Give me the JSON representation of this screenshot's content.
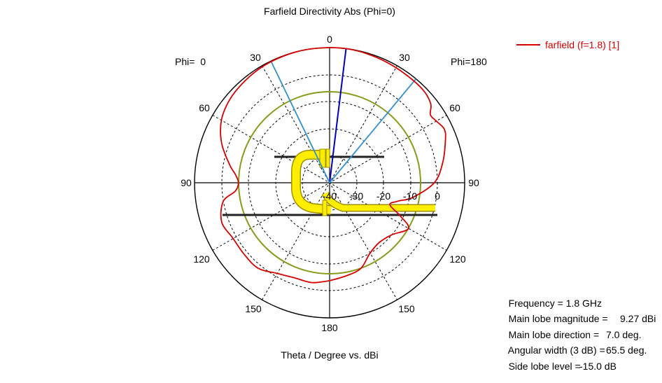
{
  "chart_data": {
    "type": "polar-line",
    "title": "Farfield Directivity Abs (Phi=0)",
    "xlabel": "Theta / Degree vs. dBi",
    "left_half_label": "Phi=  0",
    "right_half_label": "Phi=180",
    "radial_range_dbi": [
      -40,
      0
    ],
    "radial_ticks": [
      "-40",
      "-30",
      "-20",
      "-10",
      "0"
    ],
    "angle_ticks_left": [
      "0",
      "30",
      "60",
      "90",
      "120",
      "150",
      "180"
    ],
    "angle_ticks_right": [
      "30",
      "60",
      "90",
      "120",
      "150"
    ],
    "series": [
      {
        "name": "farfield (f=1.8) [1]",
        "color": "#d80000",
        "points": [
          {
            "theta": -180,
            "r": -11
          },
          {
            "theta": -170,
            "r": -10
          },
          {
            "theta": -160,
            "r": -10
          },
          {
            "theta": -150,
            "r": -9
          },
          {
            "theta": -140,
            "r": -7
          },
          {
            "theta": -130,
            "r": -7
          },
          {
            "theta": -120,
            "r": -7
          },
          {
            "theta": -110,
            "r": -6
          },
          {
            "theta": -100,
            "r": -8
          },
          {
            "theta": -95,
            "r": -12
          },
          {
            "theta": -90,
            "r": -13
          },
          {
            "theta": -85,
            "r": -12
          },
          {
            "theta": -80,
            "r": -10
          },
          {
            "theta": -70,
            "r": -6
          },
          {
            "theta": -60,
            "r": -3
          },
          {
            "theta": -50,
            "r": -1.5
          },
          {
            "theta": -40,
            "r": -0.8
          },
          {
            "theta": -30,
            "r": -0.3
          },
          {
            "theta": -20,
            "r": -0.1
          },
          {
            "theta": -10,
            "r": 0
          },
          {
            "theta": 0,
            "r": 0
          },
          {
            "theta": 7,
            "r": 0
          },
          {
            "theta": 15,
            "r": -0.2
          },
          {
            "theta": 25,
            "r": -0.5
          },
          {
            "theta": 35,
            "r": -0.8
          },
          {
            "theta": 45,
            "r": -1
          },
          {
            "theta": 52,
            "r": -2
          },
          {
            "theta": 56,
            "r": -4
          },
          {
            "theta": 60,
            "r": -3.5
          },
          {
            "theta": 65,
            "r": -2.5
          },
          {
            "theta": 70,
            "r": -3.5
          },
          {
            "theta": 80,
            "r": -6
          },
          {
            "theta": 90,
            "r": -9
          },
          {
            "theta": 100,
            "r": -15
          },
          {
            "theta": 105,
            "r": -19
          },
          {
            "theta": 110,
            "r": -21
          },
          {
            "theta": 115,
            "r": -17
          },
          {
            "theta": 120,
            "r": -13
          },
          {
            "theta": 130,
            "r": -16
          },
          {
            "theta": 140,
            "r": -17
          },
          {
            "theta": 150,
            "r": -16
          },
          {
            "theta": 160,
            "r": -13
          },
          {
            "theta": 170,
            "r": -12
          },
          {
            "theta": 180,
            "r": -11
          }
        ]
      }
    ],
    "reference_circle_dbi": -9.27,
    "markers": [
      {
        "kind": "main-lobe-direction",
        "theta": 7,
        "color": "#0000c0"
      },
      {
        "kind": "3db-beamwidth-edge",
        "theta": -25.75,
        "color": "#3090d0"
      },
      {
        "kind": "3db-beamwidth-edge",
        "theta": 39.75,
        "color": "#3090d0"
      }
    ],
    "grid": true,
    "legend_position": "top-right"
  },
  "info": {
    "frequency_label": "Frequency = 1.8 GHz",
    "magnitude_label": "Main lobe magnitude =",
    "magnitude_value": "9.27 dBi",
    "direction_label": "Main lobe direction =",
    "direction_value": "7.0 deg.",
    "width_label": "Angular width (3 dB) =",
    "width_value": "65.5 deg.",
    "sidelobe_label": "Side lobe level =",
    "sidelobe_value": "-15.0 dB"
  },
  "colors": {
    "curve": "#d80000",
    "ref_circle": "#8a9a1a",
    "main_lobe": "#0000c0",
    "beamwidth": "#3090d0",
    "antenna": "#ffee00",
    "antenna_outline": "#a09000"
  }
}
